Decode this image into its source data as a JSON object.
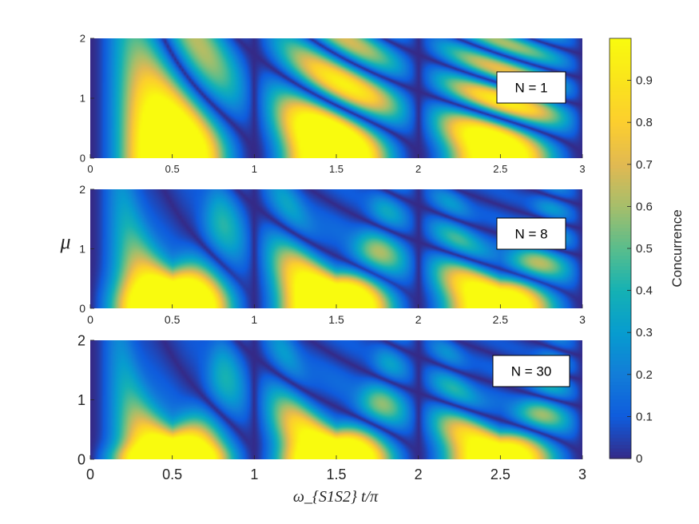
{
  "chart_data": {
    "type": "heatmap",
    "colormap": "parula",
    "x": {
      "label": "ω_{S1S2} t/π",
      "lim": [
        0,
        3
      ],
      "ticks": [
        "0",
        "0.5",
        "1",
        "1.5",
        "2",
        "2.5",
        "3"
      ]
    },
    "y": {
      "label": "μ",
      "lim": [
        0,
        2
      ],
      "ticks": [
        "0",
        "1",
        "2"
      ]
    },
    "colorbar": {
      "label": "Concurrence",
      "lim": [
        0,
        1
      ],
      "ticks": [
        "0",
        "0.1",
        "0.2",
        "0.3",
        "0.4",
        "0.5",
        "0.6",
        "0.7",
        "0.8",
        "0.9"
      ]
    },
    "panels": [
      {
        "label": "N = 1",
        "N": 1
      },
      {
        "label": "N = 8",
        "N": 8
      },
      {
        "label": "N = 30",
        "N": 30
      }
    ]
  }
}
